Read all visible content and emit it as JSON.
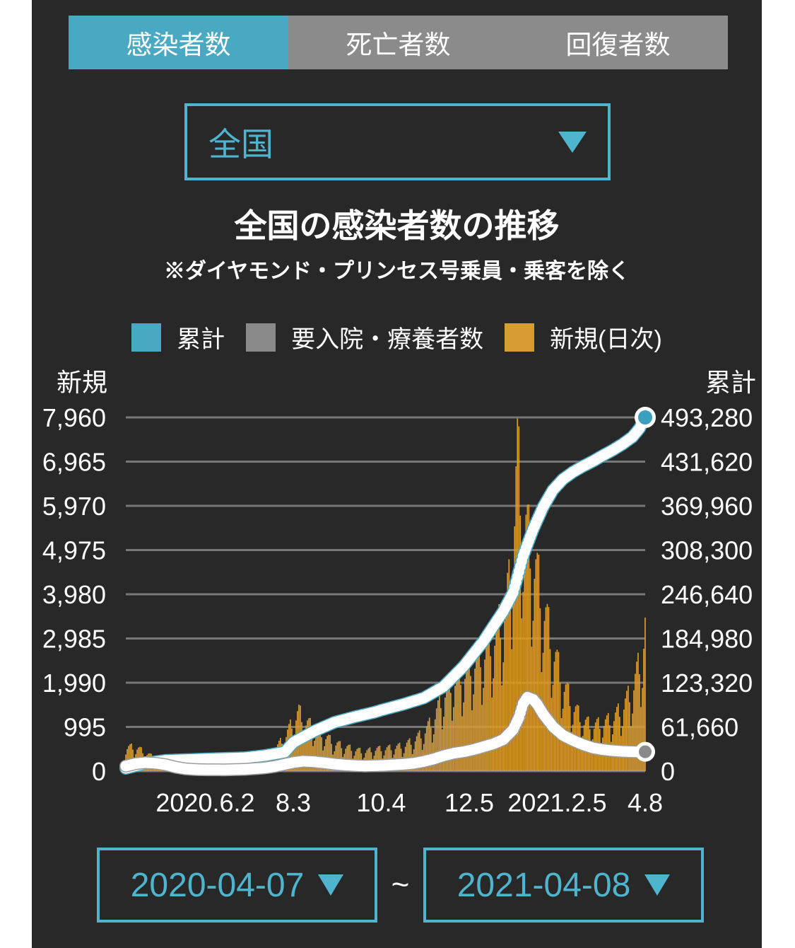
{
  "tabs": [
    {
      "label": "感染者数",
      "active": true
    },
    {
      "label": "死亡者数",
      "active": false
    },
    {
      "label": "回復者数",
      "active": false
    }
  ],
  "region_select": {
    "value": "全国"
  },
  "title": "全国の感染者数の推移",
  "subtitle": "※ダイヤモンド・プリンセス号乗員・乗客を除く",
  "legend": {
    "items": [
      {
        "label": "累計",
        "color": "#49a9c3"
      },
      {
        "label": "要入院・療養者数",
        "color": "#8a8a8a"
      },
      {
        "label": "新規(日次)",
        "color": "#d89c33"
      }
    ]
  },
  "axes": {
    "left_title": "新規",
    "right_title": "累計"
  },
  "date_range": {
    "start": "2020-04-07",
    "separator": "~",
    "end": "2021-04-08"
  },
  "colors": {
    "panel_bg": "#282828",
    "accent_teal": "#49a9c3",
    "control_teal": "#4fb5cf",
    "inactive_gray": "#8b8b8b",
    "bar_orange": "#d89c33",
    "gridline": "#777777",
    "text": "#ffffff",
    "cumulative_end_dot": "#3ba0bd",
    "hospitalized_end_dot": "#8a8a8a"
  },
  "chart_data": {
    "type": "combo",
    "description": "Daily new COVID-19 cases (bars, left axis) with cumulative total and cases requiring hospitalization/care (lines, right axis), Japan nationwide",
    "x_axis": {
      "start": "2020-04-07",
      "end": "2021-04-08",
      "total_days": 366,
      "ticks": [
        {
          "label": "2020.6.2",
          "day": 56
        },
        {
          "label": "8.3",
          "day": 118
        },
        {
          "label": "10.4",
          "day": 180
        },
        {
          "label": "12.5",
          "day": 242
        },
        {
          "label": "2021.2.5",
          "day": 304
        },
        {
          "label": "4.8",
          "day": 366
        }
      ]
    },
    "left_axis": {
      "title": "新規",
      "max": 7960,
      "ticks": [
        {
          "label": "7,960",
          "value": 7960
        },
        {
          "label": "6,965",
          "value": 6965
        },
        {
          "label": "5,970",
          "value": 5970
        },
        {
          "label": "4,975",
          "value": 4975
        },
        {
          "label": "3,980",
          "value": 3980
        },
        {
          "label": "2,985",
          "value": 2985
        },
        {
          "label": "1,990",
          "value": 1990
        },
        {
          "label": "995",
          "value": 995
        },
        {
          "label": "0",
          "value": 0
        }
      ]
    },
    "right_axis": {
      "title": "累計",
      "max": 493280,
      "ticks": [
        {
          "label": "493,280",
          "value": 493280
        },
        {
          "label": "431,620",
          "value": 431620
        },
        {
          "label": "369,960",
          "value": 369960
        },
        {
          "label": "308,300",
          "value": 308300
        },
        {
          "label": "246,640",
          "value": 246640
        },
        {
          "label": "184,980",
          "value": 184980
        },
        {
          "label": "123,320",
          "value": 123320
        },
        {
          "label": "61,660",
          "value": 61660
        },
        {
          "label": "0",
          "value": 0
        }
      ]
    },
    "series": [
      {
        "name": "新規(日次)",
        "type": "bar",
        "axis": "left",
        "color": "#d89c33",
        "start_weekday": 2,
        "weekday_factors": [
          0.92,
          0.58,
          0.72,
          0.95,
          1.08,
          1.15,
          1.18
        ],
        "envelope": [
          [
            0,
            520
          ],
          [
            7,
            530
          ],
          [
            14,
            400
          ],
          [
            21,
            280
          ],
          [
            28,
            180
          ],
          [
            35,
            80
          ],
          [
            42,
            45
          ],
          [
            49,
            38
          ],
          [
            56,
            45
          ],
          [
            63,
            50
          ],
          [
            70,
            60
          ],
          [
            77,
            80
          ],
          [
            84,
            120
          ],
          [
            91,
            180
          ],
          [
            98,
            290
          ],
          [
            105,
            480
          ],
          [
            112,
            750
          ],
          [
            118,
            1100
          ],
          [
            122,
            1300
          ],
          [
            126,
            1100
          ],
          [
            133,
            950
          ],
          [
            140,
            780
          ],
          [
            147,
            620
          ],
          [
            154,
            540
          ],
          [
            161,
            480
          ],
          [
            168,
            420
          ],
          [
            175,
            480
          ],
          [
            182,
            490
          ],
          [
            189,
            520
          ],
          [
            196,
            560
          ],
          [
            203,
            680
          ],
          [
            210,
            850
          ],
          [
            217,
            1150
          ],
          [
            224,
            1700
          ],
          [
            231,
            2000
          ],
          [
            238,
            2150
          ],
          [
            245,
            2400
          ],
          [
            252,
            2600
          ],
          [
            259,
            2900
          ],
          [
            266,
            3400
          ],
          [
            271,
            4200
          ],
          [
            274,
            5800
          ],
          [
            276,
            6900
          ],
          [
            280,
            5600
          ],
          [
            287,
            4700
          ],
          [
            294,
            3700
          ],
          [
            301,
            2700
          ],
          [
            308,
            1950
          ],
          [
            315,
            1450
          ],
          [
            322,
            1100
          ],
          [
            329,
            1000
          ],
          [
            336,
            1050
          ],
          [
            343,
            1150
          ],
          [
            350,
            1400
          ],
          [
            357,
            1800
          ],
          [
            364,
            2600
          ],
          [
            366,
            3200
          ]
        ],
        "peak": {
          "date": "2021-01-08",
          "value": 7958
        }
      },
      {
        "name": "累計",
        "type": "line",
        "axis": "right",
        "color": "#49a9c3",
        "points": [
          [
            0,
            3900
          ],
          [
            14,
            11000
          ],
          [
            28,
            15000
          ],
          [
            56,
            16900
          ],
          [
            84,
            18600
          ],
          [
            98,
            21700
          ],
          [
            112,
            26500
          ],
          [
            118,
            40000
          ],
          [
            133,
            56000
          ],
          [
            147,
            68000
          ],
          [
            161,
            75500
          ],
          [
            175,
            82000
          ],
          [
            180,
            85000
          ],
          [
            196,
            93500
          ],
          [
            210,
            102000
          ],
          [
            224,
            118000
          ],
          [
            238,
            146000
          ],
          [
            252,
            181000
          ],
          [
            266,
            223000
          ],
          [
            273,
            249000
          ],
          [
            280,
            300000
          ],
          [
            287,
            337000
          ],
          [
            294,
            368000
          ],
          [
            301,
            392000
          ],
          [
            308,
            407000
          ],
          [
            315,
            417000
          ],
          [
            322,
            425000
          ],
          [
            329,
            432000
          ],
          [
            336,
            440000
          ],
          [
            343,
            447500
          ],
          [
            350,
            456000
          ],
          [
            357,
            466000
          ],
          [
            362,
            478000
          ],
          [
            366,
            493280
          ]
        ],
        "end_marker": {
          "day": 366,
          "value": 493280,
          "color": "#3ba0bd"
        }
      },
      {
        "name": "要入院・療養者数",
        "type": "line",
        "axis": "right",
        "color": "#9a9a9a",
        "points": [
          [
            0,
            7000
          ],
          [
            7,
            10500
          ],
          [
            14,
            11800
          ],
          [
            21,
            11000
          ],
          [
            28,
            9000
          ],
          [
            35,
            5500
          ],
          [
            42,
            3200
          ],
          [
            49,
            2200
          ],
          [
            56,
            1900
          ],
          [
            70,
            1800
          ],
          [
            84,
            2500
          ],
          [
            98,
            4500
          ],
          [
            105,
            6500
          ],
          [
            112,
            9500
          ],
          [
            118,
            12000
          ],
          [
            125,
            13800
          ],
          [
            133,
            13000
          ],
          [
            140,
            11500
          ],
          [
            147,
            9800
          ],
          [
            154,
            8600
          ],
          [
            161,
            7800
          ],
          [
            168,
            7200
          ],
          [
            175,
            7500
          ],
          [
            182,
            8000
          ],
          [
            189,
            8800
          ],
          [
            196,
            9600
          ],
          [
            203,
            11000
          ],
          [
            210,
            13500
          ],
          [
            217,
            17000
          ],
          [
            224,
            21500
          ],
          [
            231,
            25000
          ],
          [
            238,
            27000
          ],
          [
            245,
            30000
          ],
          [
            252,
            34000
          ],
          [
            259,
            38000
          ],
          [
            266,
            44000
          ],
          [
            273,
            58000
          ],
          [
            277,
            75000
          ],
          [
            280,
            94000
          ],
          [
            283,
            103000
          ],
          [
            287,
            100000
          ],
          [
            290,
            93000
          ],
          [
            294,
            80000
          ],
          [
            301,
            62000
          ],
          [
            308,
            50000
          ],
          [
            315,
            43000
          ],
          [
            322,
            37000
          ],
          [
            329,
            32500
          ],
          [
            336,
            30000
          ],
          [
            343,
            28500
          ],
          [
            350,
            27500
          ],
          [
            357,
            27000
          ],
          [
            362,
            26800
          ],
          [
            366,
            27000
          ]
        ],
        "end_marker": {
          "day": 366,
          "value": 27000,
          "color": "#8a8a8a"
        }
      }
    ],
    "grid": true,
    "legend_position": "top"
  }
}
